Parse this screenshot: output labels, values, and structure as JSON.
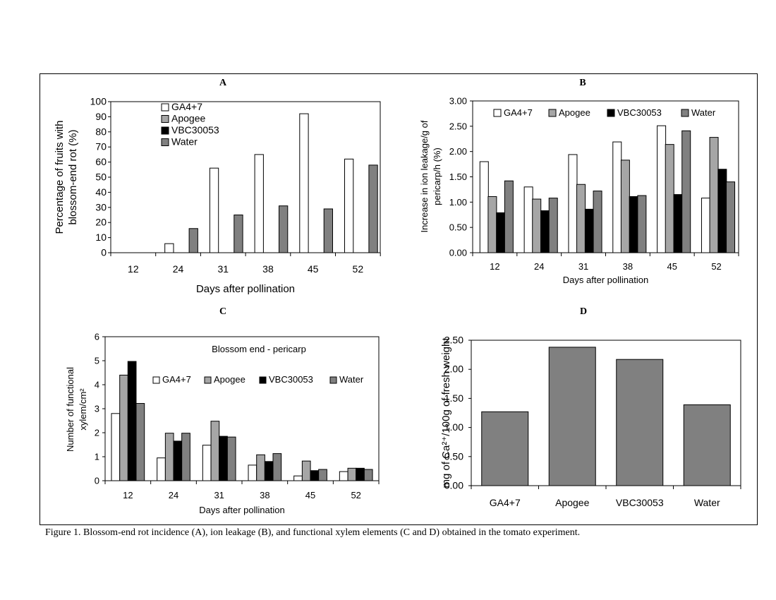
{
  "caption": "Figure 1. Blossom-end rot incidence (A), ion leakage (B), and functional xylem elements (C and D) obtained in the tomato experiment.",
  "series_colors": {
    "GA4+7": "#ffffff",
    "Apogee": "#a6a6a6",
    "VBC30053": "#000000",
    "Water": "#808080"
  },
  "chart_data": [
    {
      "panel": "A",
      "type": "bar",
      "title": "A",
      "xlabel": "Days after pollination",
      "ylabel": [
        "Percentage of fruits with",
        "blossom-end rot (%)"
      ],
      "categories": [
        "12",
        "24",
        "31",
        "38",
        "45",
        "52"
      ],
      "ylim": [
        0,
        100
      ],
      "yticks": [
        "0",
        "10",
        "20",
        "30",
        "40",
        "50",
        "60",
        "70",
        "80",
        "90",
        "100"
      ],
      "legend": [
        "GA4+7",
        "Apogee",
        "VBC30053",
        "Water"
      ],
      "legend_position": "top-left",
      "series": [
        {
          "name": "GA4+7",
          "values": [
            0,
            6,
            56,
            65,
            92,
            62
          ]
        },
        {
          "name": "Water",
          "values": [
            0,
            16,
            25,
            31,
            29,
            58
          ]
        }
      ]
    },
    {
      "panel": "B",
      "type": "bar",
      "title": "B",
      "xlabel": "Days  after pollination",
      "ylabel": [
        "Increase in ion leakage/g of",
        "pericarp/h (%)"
      ],
      "categories": [
        "12",
        "24",
        "31",
        "38",
        "45",
        "52"
      ],
      "ylim": [
        0,
        3
      ],
      "yticks": [
        "0.00",
        "0.50",
        "1.00",
        "1.50",
        "2.00",
        "2.50",
        "3.00"
      ],
      "legend": [
        "GA4+7",
        "Apogee",
        "VBC30053",
        "Water"
      ],
      "legend_position": "top",
      "series": [
        {
          "name": "GA4+7",
          "values": [
            1.8,
            1.3,
            1.94,
            2.19,
            2.51,
            1.08
          ]
        },
        {
          "name": "Apogee",
          "values": [
            1.11,
            1.06,
            1.35,
            1.83,
            2.14,
            2.28
          ]
        },
        {
          "name": "VBC30053",
          "values": [
            0.79,
            0.83,
            0.86,
            1.11,
            1.15,
            1.65
          ]
        },
        {
          "name": "Water",
          "values": [
            1.42,
            1.08,
            1.22,
            1.13,
            2.41,
            1.4
          ]
        }
      ]
    },
    {
      "panel": "C",
      "type": "bar",
      "title": "C",
      "subtitle": "Blossom end - pericarp",
      "xlabel": "Days after pollination",
      "ylabel": [
        "Number of functional",
        "xylem/cm²"
      ],
      "categories": [
        "12",
        "24",
        "31",
        "38",
        "45",
        "52"
      ],
      "ylim": [
        0,
        6
      ],
      "yticks": [
        "0",
        "1",
        "2",
        "3",
        "4",
        "5",
        "6"
      ],
      "legend": [
        "GA4+7",
        "Apogee",
        "VBC30053",
        "Water"
      ],
      "legend_position": "top-right",
      "series": [
        {
          "name": "GA4+7",
          "values": [
            2.8,
            0.95,
            1.48,
            0.65,
            0.2,
            0.38
          ]
        },
        {
          "name": "Apogee",
          "values": [
            4.4,
            1.98,
            2.48,
            1.08,
            0.82,
            0.52
          ]
        },
        {
          "name": "VBC30053",
          "values": [
            4.97,
            1.65,
            1.85,
            0.8,
            0.42,
            0.52
          ]
        },
        {
          "name": "Water",
          "values": [
            3.22,
            1.98,
            1.82,
            1.13,
            0.47,
            0.47
          ]
        }
      ]
    },
    {
      "panel": "D",
      "type": "bar",
      "title": "D",
      "ylabel": "mg of Ca²⁺/100g of fresh weight",
      "categories": [
        "GA4+7",
        "Apogee",
        "VBC30053",
        "Water"
      ],
      "ylim": [
        0,
        2.5
      ],
      "yticks": [
        "0.00",
        "0.50",
        "1.00",
        "1.50",
        "2.00",
        "2.50"
      ],
      "values": [
        1.27,
        2.38,
        2.17,
        1.39
      ]
    }
  ]
}
